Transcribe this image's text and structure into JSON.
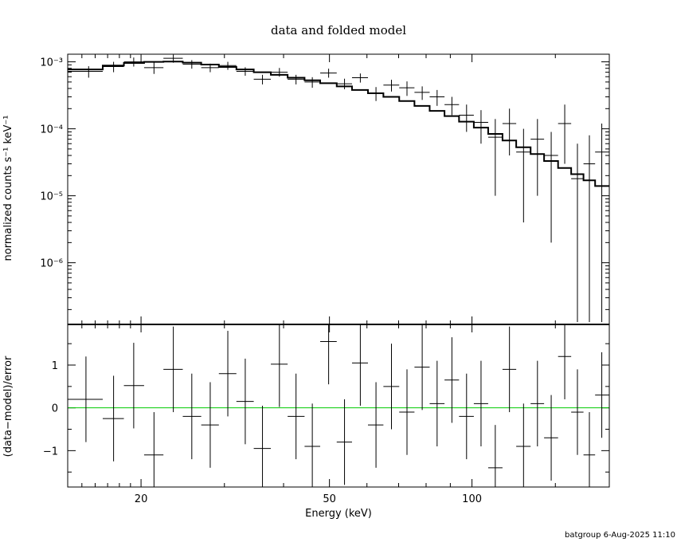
{
  "chart_data": [
    {
      "type": "scatter",
      "title": "data and folded model",
      "xlabel": "",
      "ylabel": "normalized counts s⁻¹ keV⁻¹",
      "xscale": "log",
      "yscale": "log",
      "xlim": [
        14,
        195
      ],
      "ylim": [
        1.2e-07,
        0.0013
      ],
      "grid": false,
      "y_ticks": [
        {
          "value": 0.001,
          "label": "10⁻³"
        },
        {
          "value": 0.0001,
          "label": "10⁻⁴"
        },
        {
          "value": 1e-05,
          "label": "10⁻⁵"
        },
        {
          "value": 1e-06,
          "label": "10⁻⁶"
        }
      ],
      "series": [
        {
          "role": "data",
          "color": "#000000",
          "points": [
            {
              "x": 15.5,
              "xlo": 14.0,
              "xhi": 16.6,
              "y": 0.00072,
              "ylo": 0.00058,
              "yhi": 0.00086
            },
            {
              "x": 17.5,
              "xlo": 16.6,
              "xhi": 18.4,
              "y": 0.00085,
              "ylo": 0.0007,
              "yhi": 0.001
            },
            {
              "x": 19.3,
              "xlo": 18.4,
              "xhi": 20.3,
              "y": 0.001,
              "ylo": 0.00085,
              "yhi": 0.00116
            },
            {
              "x": 21.3,
              "xlo": 20.3,
              "xhi": 22.3,
              "y": 0.00082,
              "ylo": 0.00066,
              "yhi": 0.00098
            },
            {
              "x": 23.4,
              "xlo": 22.3,
              "xhi": 24.5,
              "y": 0.00113,
              "ylo": 0.00097,
              "yhi": 0.00128
            },
            {
              "x": 25.6,
              "xlo": 24.5,
              "xhi": 26.8,
              "y": 0.00092,
              "ylo": 0.00079,
              "yhi": 0.00106
            },
            {
              "x": 28.0,
              "xlo": 26.8,
              "xhi": 29.2,
              "y": 0.00082,
              "ylo": 0.0007,
              "yhi": 0.00094
            },
            {
              "x": 30.5,
              "xlo": 29.2,
              "xhi": 31.8,
              "y": 0.00088,
              "ylo": 0.00076,
              "yhi": 0.001
            },
            {
              "x": 33.2,
              "xlo": 31.8,
              "xhi": 34.6,
              "y": 0.00072,
              "ylo": 0.00062,
              "yhi": 0.00083
            },
            {
              "x": 36.1,
              "xlo": 34.6,
              "xhi": 37.6,
              "y": 0.00055,
              "ylo": 0.00046,
              "yhi": 0.00064
            },
            {
              "x": 39.2,
              "xlo": 37.6,
              "xhi": 40.8,
              "y": 0.0007,
              "ylo": 0.0006,
              "yhi": 0.00081
            },
            {
              "x": 42.5,
              "xlo": 40.8,
              "xhi": 44.3,
              "y": 0.00055,
              "ylo": 0.00046,
              "yhi": 0.00064
            },
            {
              "x": 46.0,
              "xlo": 44.3,
              "xhi": 47.8,
              "y": 0.0005,
              "ylo": 0.00041,
              "yhi": 0.00059
            },
            {
              "x": 49.8,
              "xlo": 47.8,
              "xhi": 51.8,
              "y": 0.00068,
              "ylo": 0.00058,
              "yhi": 0.00079
            },
            {
              "x": 53.8,
              "xlo": 51.8,
              "xhi": 55.8,
              "y": 0.00047,
              "ylo": 0.00039,
              "yhi": 0.00056
            },
            {
              "x": 58.1,
              "xlo": 55.8,
              "xhi": 60.3,
              "y": 0.00058,
              "ylo": 0.00049,
              "yhi": 0.00067
            },
            {
              "x": 62.7,
              "xlo": 60.3,
              "xhi": 65.0,
              "y": 0.00034,
              "ylo": 0.00026,
              "yhi": 0.00042
            },
            {
              "x": 67.6,
              "xlo": 65.0,
              "xhi": 70.2,
              "y": 0.00045,
              "ylo": 0.00036,
              "yhi": 0.00054
            },
            {
              "x": 72.9,
              "xlo": 70.2,
              "xhi": 75.6,
              "y": 0.00041,
              "ylo": 0.00031,
              "yhi": 0.00051
            },
            {
              "x": 78.5,
              "xlo": 75.6,
              "xhi": 81.4,
              "y": 0.00035,
              "ylo": 0.00027,
              "yhi": 0.00043
            },
            {
              "x": 84.4,
              "xlo": 81.4,
              "xhi": 87.5,
              "y": 0.0003,
              "ylo": 0.00022,
              "yhi": 0.00038
            },
            {
              "x": 90.7,
              "xlo": 87.5,
              "xhi": 93.9,
              "y": 0.00023,
              "ylo": 0.00016,
              "yhi": 0.0003
            },
            {
              "x": 97.4,
              "xlo": 93.9,
              "xhi": 100.9,
              "y": 0.00016,
              "ylo": 9e-05,
              "yhi": 0.00023
            },
            {
              "x": 104.5,
              "xlo": 100.9,
              "xhi": 108.2,
              "y": 0.000125,
              "ylo": 6e-05,
              "yhi": 0.00019
            },
            {
              "x": 112.0,
              "xlo": 108.2,
              "xhi": 116.0,
              "y": 7.5e-05,
              "ylo": 1e-05,
              "yhi": 0.00014
            },
            {
              "x": 120.0,
              "xlo": 116.0,
              "xhi": 124.0,
              "y": 0.00012,
              "ylo": 4e-05,
              "yhi": 0.0002
            },
            {
              "x": 128.5,
              "xlo": 124.0,
              "xhi": 133.0,
              "y": 4.5e-05,
              "ylo": 4e-06,
              "yhi": 0.0001
            },
            {
              "x": 137.5,
              "xlo": 133.0,
              "xhi": 142.0,
              "y": 7e-05,
              "ylo": 1e-05,
              "yhi": 0.00014
            },
            {
              "x": 147.0,
              "xlo": 142.0,
              "xhi": 152.0,
              "y": 4e-05,
              "ylo": 2e-06,
              "yhi": 9e-05
            },
            {
              "x": 157.0,
              "xlo": 152.0,
              "xhi": 162.0,
              "y": 0.00012,
              "ylo": 3e-05,
              "yhi": 0.00023
            },
            {
              "x": 167.0,
              "xlo": 162.0,
              "xhi": 172.0,
              "y": 1.8e-05,
              "ylo": 1.3e-07,
              "yhi": 6e-05
            },
            {
              "x": 177.0,
              "xlo": 172.0,
              "xhi": 182.0,
              "y": 3e-05,
              "ylo": 1.3e-07,
              "yhi": 8e-05
            },
            {
              "x": 188.0,
              "xlo": 182.0,
              "xhi": 195.0,
              "y": 4.5e-05,
              "ylo": 1.3e-07,
              "yhi": 0.00012
            }
          ]
        },
        {
          "role": "model",
          "color": "#000000",
          "steps": [
            {
              "xlo": 14.0,
              "xhi": 16.6,
              "y": 0.00077
            },
            {
              "xlo": 16.6,
              "xhi": 18.4,
              "y": 0.00088
            },
            {
              "xlo": 18.4,
              "xhi": 20.3,
              "y": 0.00096
            },
            {
              "xlo": 20.3,
              "xhi": 22.3,
              "y": 0.001
            },
            {
              "xlo": 22.3,
              "xhi": 24.5,
              "y": 0.00101
            },
            {
              "xlo": 24.5,
              "xhi": 26.8,
              "y": 0.00097
            },
            {
              "xlo": 26.8,
              "xhi": 29.2,
              "y": 0.00091
            },
            {
              "xlo": 29.2,
              "xhi": 31.8,
              "y": 0.00084
            },
            {
              "xlo": 31.8,
              "xhi": 34.6,
              "y": 0.00077
            },
            {
              "xlo": 34.6,
              "xhi": 37.6,
              "y": 0.0007
            },
            {
              "xlo": 37.6,
              "xhi": 40.8,
              "y": 0.00064
            },
            {
              "xlo": 40.8,
              "xhi": 44.3,
              "y": 0.00058
            },
            {
              "xlo": 44.3,
              "xhi": 47.8,
              "y": 0.00053
            },
            {
              "xlo": 47.8,
              "xhi": 51.8,
              "y": 0.00048
            },
            {
              "xlo": 51.8,
              "xhi": 55.8,
              "y": 0.00043
            },
            {
              "xlo": 55.8,
              "xhi": 60.3,
              "y": 0.00038
            },
            {
              "xlo": 60.3,
              "xhi": 65.0,
              "y": 0.00034
            },
            {
              "xlo": 65.0,
              "xhi": 70.2,
              "y": 0.0003
            },
            {
              "xlo": 70.2,
              "xhi": 75.6,
              "y": 0.00026
            },
            {
              "xlo": 75.6,
              "xhi": 81.4,
              "y": 0.00022
            },
            {
              "xlo": 81.4,
              "xhi": 87.5,
              "y": 0.000185
            },
            {
              "xlo": 87.5,
              "xhi": 93.9,
              "y": 0.000155
            },
            {
              "xlo": 93.9,
              "xhi": 100.9,
              "y": 0.000128
            },
            {
              "xlo": 100.9,
              "xhi": 108.2,
              "y": 0.000104
            },
            {
              "xlo": 108.2,
              "xhi": 116.0,
              "y": 8.4e-05
            },
            {
              "xlo": 116.0,
              "xhi": 124.0,
              "y": 6.7e-05
            },
            {
              "xlo": 124.0,
              "xhi": 133.0,
              "y": 5.3e-05
            },
            {
              "xlo": 133.0,
              "xhi": 142.0,
              "y": 4.2e-05
            },
            {
              "xlo": 142.0,
              "xhi": 152.0,
              "y": 3.3e-05
            },
            {
              "xlo": 152.0,
              "xhi": 162.0,
              "y": 2.6e-05
            },
            {
              "xlo": 162.0,
              "xhi": 172.0,
              "y": 2.1e-05
            },
            {
              "xlo": 172.0,
              "xhi": 182.0,
              "y": 1.7e-05
            },
            {
              "xlo": 182.0,
              "xhi": 195.0,
              "y": 1.4e-05
            }
          ]
        }
      ]
    },
    {
      "type": "scatter",
      "title": "",
      "xlabel": "Energy (keV)",
      "ylabel": "(data−model)/error",
      "xscale": "log",
      "yscale": "linear",
      "xlim": [
        14,
        195
      ],
      "ylim": [
        -1.85,
        1.95
      ],
      "grid": false,
      "x_ticks": [
        {
          "value": 20,
          "label": "20"
        },
        {
          "value": 50,
          "label": "50"
        },
        {
          "value": 100,
          "label": "100"
        }
      ],
      "y_ticks": [
        {
          "value": 1,
          "label": "1"
        },
        {
          "value": 0,
          "label": "0"
        },
        {
          "value": -1,
          "label": "−1"
        }
      ],
      "reference_line": {
        "y": 0,
        "color": "#00cc00"
      },
      "series": [
        {
          "role": "residuals",
          "color": "#000000",
          "points": [
            {
              "x": 15.3,
              "xlo": 14.0,
              "xhi": 16.6,
              "y": 0.2,
              "ylo": -0.8,
              "yhi": 1.2
            },
            {
              "x": 17.5,
              "xlo": 16.6,
              "xhi": 18.4,
              "y": -0.25,
              "ylo": -1.25,
              "yhi": 0.75
            },
            {
              "x": 19.3,
              "xlo": 18.4,
              "xhi": 20.3,
              "y": 0.52,
              "ylo": -0.48,
              "yhi": 1.52
            },
            {
              "x": 21.3,
              "xlo": 20.3,
              "xhi": 22.3,
              "y": -1.1,
              "ylo": -2.1,
              "yhi": -0.1
            },
            {
              "x": 23.4,
              "xlo": 22.3,
              "xhi": 24.5,
              "y": 0.9,
              "ylo": -0.1,
              "yhi": 1.9
            },
            {
              "x": 25.6,
              "xlo": 24.5,
              "xhi": 26.8,
              "y": -0.2,
              "ylo": -1.2,
              "yhi": 0.8
            },
            {
              "x": 28.0,
              "xlo": 26.8,
              "xhi": 29.2,
              "y": -0.4,
              "ylo": -1.4,
              "yhi": 0.6
            },
            {
              "x": 30.5,
              "xlo": 29.2,
              "xhi": 31.8,
              "y": 0.8,
              "ylo": -0.2,
              "yhi": 1.8
            },
            {
              "x": 33.2,
              "xlo": 31.8,
              "xhi": 34.6,
              "y": 0.15,
              "ylo": -0.85,
              "yhi": 1.15
            },
            {
              "x": 36.1,
              "xlo": 34.6,
              "xhi": 37.6,
              "y": -0.95,
              "ylo": -1.95,
              "yhi": 0.05
            },
            {
              "x": 39.2,
              "xlo": 37.6,
              "xhi": 40.8,
              "y": 1.02,
              "ylo": 0.02,
              "yhi": 2.02
            },
            {
              "x": 42.5,
              "xlo": 40.8,
              "xhi": 44.3,
              "y": -0.2,
              "ylo": -1.2,
              "yhi": 0.8
            },
            {
              "x": 46.0,
              "xlo": 44.3,
              "xhi": 47.8,
              "y": -0.9,
              "ylo": -1.9,
              "yhi": 0.1
            },
            {
              "x": 49.8,
              "xlo": 47.8,
              "xhi": 51.8,
              "y": 1.55,
              "ylo": 0.55,
              "yhi": 2.55
            },
            {
              "x": 53.8,
              "xlo": 51.8,
              "xhi": 55.8,
              "y": -0.8,
              "ylo": -1.8,
              "yhi": 0.2
            },
            {
              "x": 58.1,
              "xlo": 55.8,
              "xhi": 60.3,
              "y": 1.05,
              "ylo": 0.05,
              "yhi": 2.05
            },
            {
              "x": 62.7,
              "xlo": 60.3,
              "xhi": 65.0,
              "y": -0.4,
              "ylo": -1.4,
              "yhi": 0.6
            },
            {
              "x": 67.6,
              "xlo": 65.0,
              "xhi": 70.2,
              "y": 0.5,
              "ylo": -0.5,
              "yhi": 1.5
            },
            {
              "x": 72.9,
              "xlo": 70.2,
              "xhi": 75.6,
              "y": -0.1,
              "ylo": -1.1,
              "yhi": 0.9
            },
            {
              "x": 78.5,
              "xlo": 75.6,
              "xhi": 81.4,
              "y": 0.95,
              "ylo": -0.05,
              "yhi": 1.95
            },
            {
              "x": 84.4,
              "xlo": 81.4,
              "xhi": 87.5,
              "y": 0.1,
              "ylo": -0.9,
              "yhi": 1.1
            },
            {
              "x": 90.7,
              "xlo": 87.5,
              "xhi": 93.9,
              "y": 0.65,
              "ylo": -0.35,
              "yhi": 1.65
            },
            {
              "x": 97.4,
              "xlo": 93.9,
              "xhi": 100.9,
              "y": -0.2,
              "ylo": -1.2,
              "yhi": 0.8
            },
            {
              "x": 104.5,
              "xlo": 100.9,
              "xhi": 108.2,
              "y": 0.1,
              "ylo": -0.9,
              "yhi": 1.1
            },
            {
              "x": 112.0,
              "xlo": 108.2,
              "xhi": 116.0,
              "y": -1.4,
              "ylo": -2.4,
              "yhi": -0.4
            },
            {
              "x": 120.0,
              "xlo": 116.0,
              "xhi": 124.0,
              "y": 0.9,
              "ylo": -0.1,
              "yhi": 1.9
            },
            {
              "x": 128.5,
              "xlo": 124.0,
              "xhi": 133.0,
              "y": -0.9,
              "ylo": -1.9,
              "yhi": 0.1
            },
            {
              "x": 137.5,
              "xlo": 133.0,
              "xhi": 142.0,
              "y": 0.1,
              "ylo": -0.9,
              "yhi": 1.1
            },
            {
              "x": 147.0,
              "xlo": 142.0,
              "xhi": 152.0,
              "y": -0.7,
              "ylo": -1.7,
              "yhi": 0.3
            },
            {
              "x": 157.0,
              "xlo": 152.0,
              "xhi": 162.0,
              "y": 1.2,
              "ylo": 0.2,
              "yhi": 2.2
            },
            {
              "x": 167.0,
              "xlo": 162.0,
              "xhi": 172.0,
              "y": -0.1,
              "ylo": -1.1,
              "yhi": 0.9
            },
            {
              "x": 177.0,
              "xlo": 172.0,
              "xhi": 182.0,
              "y": -1.1,
              "ylo": -2.1,
              "yhi": -0.1
            },
            {
              "x": 188.0,
              "xlo": 182.0,
              "xhi": 195.0,
              "y": 0.3,
              "ylo": -0.7,
              "yhi": 1.3
            }
          ]
        }
      ]
    }
  ],
  "footer": {
    "text": "batgroup  6-Aug-2025 11:10"
  }
}
